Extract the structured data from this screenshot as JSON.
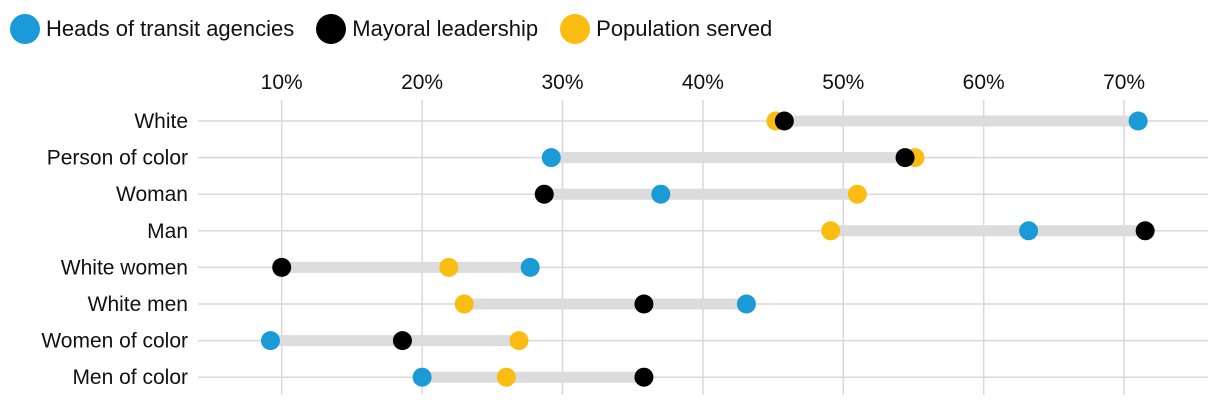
{
  "legend": {
    "items": [
      {
        "label": "Heads of transit agencies",
        "color": "#1a9ad6"
      },
      {
        "label": "Mayoral leadership",
        "color": "#000000"
      },
      {
        "label": "Population served",
        "color": "#fbbd12"
      }
    ]
  },
  "chart_data": {
    "type": "dumbbell",
    "title": "",
    "xlabel": "",
    "ylabel": "",
    "xlim": [
      0,
      76
    ],
    "x_ticks": [
      10,
      20,
      30,
      40,
      50,
      60,
      70
    ],
    "x_tick_labels": [
      "10%",
      "20%",
      "30%",
      "40%",
      "50%",
      "60%",
      "70%"
    ],
    "grid": true,
    "legend_position": "top-left",
    "categories": [
      "White",
      "Person of color",
      "Woman",
      "Man",
      "White women",
      "White men",
      "Women of color",
      "Men of color"
    ],
    "series": [
      {
        "name": "Heads of transit agencies",
        "color": "#1a9ad6",
        "values": [
          71,
          29.2,
          37,
          63.2,
          27.7,
          43.1,
          9.2,
          20
        ]
      },
      {
        "name": "Mayoral leadership",
        "color": "#000000",
        "values": [
          45.8,
          54.4,
          28.7,
          71.5,
          10,
          35.8,
          18.6,
          35.8
        ]
      },
      {
        "name": "Population served",
        "color": "#fbbd12",
        "values": [
          45.2,
          55.1,
          51,
          49.1,
          21.9,
          23,
          26.9,
          26
        ]
      }
    ]
  }
}
